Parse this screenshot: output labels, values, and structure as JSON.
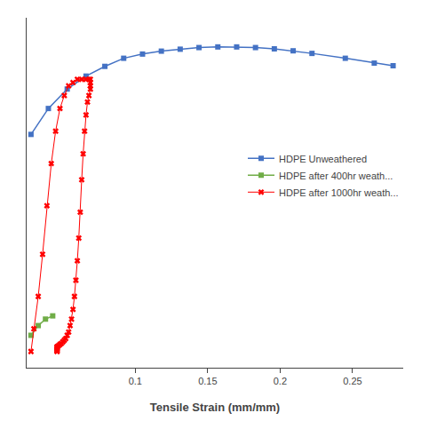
{
  "chart_data": {
    "type": "line",
    "xlabel": "Tensile Strain (mm/mm)",
    "xlim": [
      0.025,
      0.285
    ],
    "ylim": [
      0.0,
      1.08
    ],
    "xticks": [
      0.1,
      0.15,
      0.2,
      0.25
    ],
    "yticks": [],
    "tick_labels": "x",
    "grid": false,
    "legend": "right",
    "series": [
      {
        "name": "HDPE Unweathered",
        "color": "#4472C4",
        "marker": "square",
        "x": [
          0.028,
          0.04,
          0.053,
          0.066,
          0.079,
          0.092,
          0.105,
          0.118,
          0.131,
          0.144,
          0.157,
          0.17,
          0.183,
          0.196,
          0.209,
          0.222,
          0.245,
          0.265,
          0.278
        ],
        "values": [
          0.72,
          0.8,
          0.86,
          0.9,
          0.93,
          0.955,
          0.968,
          0.977,
          0.983,
          0.988,
          0.99,
          0.99,
          0.988,
          0.984,
          0.978,
          0.97,
          0.955,
          0.94,
          0.932
        ]
      },
      {
        "name": "HDPE after 400hr weath...",
        "color": "#70AD47",
        "marker": "square",
        "x": [
          0.028,
          0.033,
          0.038,
          0.043
        ],
        "values": [
          0.1,
          0.13,
          0.15,
          0.16
        ]
      },
      {
        "name": "HDPE after 1000hr weath...",
        "color": "#FF0000",
        "marker": "x",
        "x": [
          0.028,
          0.03,
          0.033,
          0.036,
          0.039,
          0.042,
          0.045,
          0.048,
          0.051,
          0.054,
          0.057,
          0.06,
          0.063,
          0.066,
          0.068,
          0.069,
          0.069,
          0.069,
          0.069,
          0.068,
          0.067,
          0.066,
          0.065,
          0.064,
          0.063,
          0.062,
          0.061,
          0.06,
          0.059,
          0.058,
          0.057,
          0.056,
          0.055,
          0.054,
          0.053,
          0.052,
          0.051,
          0.05,
          0.049,
          0.048,
          0.047,
          0.046,
          0.046,
          0.046,
          0.046,
          0.046,
          0.046,
          0.046,
          0.046
        ],
        "values": [
          0.05,
          0.12,
          0.22,
          0.35,
          0.5,
          0.63,
          0.73,
          0.8,
          0.84,
          0.87,
          0.88,
          0.89,
          0.89,
          0.89,
          0.89,
          0.89,
          0.88,
          0.87,
          0.86,
          0.84,
          0.82,
          0.78,
          0.73,
          0.66,
          0.58,
          0.48,
          0.4,
          0.33,
          0.27,
          0.22,
          0.18,
          0.15,
          0.13,
          0.11,
          0.1,
          0.09,
          0.085,
          0.08,
          0.075,
          0.072,
          0.068,
          0.065,
          0.063,
          0.06,
          0.058,
          0.056,
          0.054,
          0.052,
          0.05
        ]
      }
    ]
  }
}
